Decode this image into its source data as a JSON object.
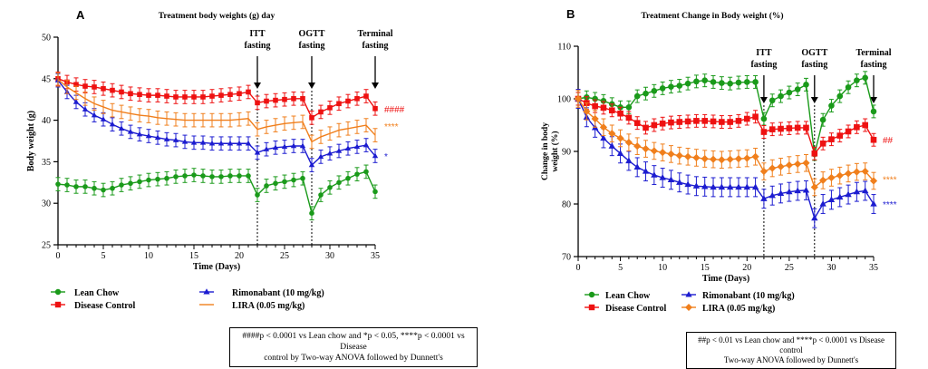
{
  "panels": {
    "A": {
      "letter": "A",
      "title": "Treatment body weights (g) day",
      "annotations": [
        {
          "label": [
            "ITT",
            "fasting"
          ],
          "day": 22
        },
        {
          "label": [
            "OGTT",
            "fasting"
          ],
          "day": 28
        },
        {
          "label": [
            "Terminal",
            "fasting"
          ],
          "day": 35
        }
      ],
      "significance": [
        "####",
        "*",
        "****"
      ],
      "footnote": [
        "####p < 0.0001 vs Lean chow and *p < 0.05, ****p < 0.0001 vs Disease",
        "control by Two-way ANOVA followed by Dunnett's"
      ]
    },
    "B": {
      "letter": "B",
      "title": "Treatment Change in Body weight (%)",
      "annotations": [
        {
          "label": [
            "ITT",
            "fasting"
          ],
          "day": 22
        },
        {
          "label": [
            "OGTT",
            "fasting"
          ],
          "day": 28
        },
        {
          "label": [
            "Terminal",
            "fasting"
          ],
          "day": 35
        }
      ],
      "significance": [
        "##",
        "****",
        "****"
      ],
      "footnote": [
        "##p < 0.01 vs Lean chow and ****p < 0.0001 vs Disease control",
        "Two-way ANOVA followed by Dunnett's"
      ]
    }
  },
  "chart_data": [
    {
      "type": "line",
      "title": "Treatment body weights (g) day",
      "xlabel": "Time (Days)",
      "ylabel": "Body weight (g)",
      "xlim": [
        0,
        35
      ],
      "ylim": [
        25,
        50
      ],
      "xticks": [
        0,
        5,
        10,
        15,
        20,
        25,
        30,
        35
      ],
      "yticks": [
        25,
        30,
        35,
        40,
        45,
        50
      ],
      "legend_position": "bottom",
      "x": [
        0,
        1,
        2,
        3,
        4,
        5,
        6,
        7,
        8,
        9,
        10,
        11,
        12,
        13,
        14,
        15,
        16,
        17,
        18,
        19,
        20,
        21,
        22,
        23,
        24,
        25,
        26,
        27,
        28,
        29,
        30,
        31,
        32,
        33,
        34,
        35
      ],
      "series": [
        {
          "name": "Lean Chow",
          "color": "#1a9a1a",
          "marker": "circle",
          "values": [
            32.3,
            32.2,
            32.0,
            32.0,
            31.8,
            31.6,
            31.8,
            32.2,
            32.4,
            32.6,
            32.8,
            32.9,
            33.0,
            33.2,
            33.3,
            33.4,
            33.3,
            33.2,
            33.2,
            33.3,
            33.3,
            33.3,
            31.0,
            32.1,
            32.4,
            32.6,
            32.8,
            33.0,
            28.8,
            31.0,
            31.9,
            32.5,
            33.0,
            33.5,
            33.8,
            31.4
          ],
          "error": 0.8
        },
        {
          "name": "Disease Control",
          "color": "#ee1111",
          "marker": "square",
          "values": [
            45.0,
            44.6,
            44.3,
            44.1,
            44.0,
            43.8,
            43.6,
            43.4,
            43.2,
            43.1,
            43.0,
            43.0,
            42.9,
            42.8,
            42.8,
            42.8,
            42.8,
            42.9,
            43.0,
            43.1,
            43.2,
            43.4,
            42.1,
            42.3,
            42.4,
            42.5,
            42.6,
            42.6,
            40.3,
            41.0,
            41.5,
            42.0,
            42.3,
            42.6,
            42.9,
            41.4
          ],
          "error": 0.8
        },
        {
          "name": "Rimonabant (10 mg/kg)",
          "color": "#1c1cd0",
          "marker": "triangle",
          "values": [
            44.8,
            43.4,
            42.2,
            41.3,
            40.6,
            40.1,
            39.5,
            39.0,
            38.6,
            38.3,
            38.1,
            37.9,
            37.7,
            37.6,
            37.4,
            37.3,
            37.3,
            37.2,
            37.2,
            37.2,
            37.2,
            37.2,
            36.1,
            36.5,
            36.7,
            36.8,
            36.9,
            36.9,
            34.6,
            35.6,
            36.0,
            36.3,
            36.6,
            36.8,
            37.0,
            35.7
          ],
          "error": 0.8
        },
        {
          "name": "LIRA (0.05 mg/kg)",
          "color": "#f07f1c",
          "marker": "none",
          "values": [
            44.9,
            44.0,
            43.3,
            42.6,
            42.0,
            41.6,
            41.2,
            41.0,
            40.8,
            40.6,
            40.5,
            40.3,
            40.2,
            40.1,
            40.0,
            40.0,
            40.0,
            40.0,
            40.0,
            40.0,
            40.1,
            40.2,
            38.9,
            39.2,
            39.4,
            39.6,
            39.7,
            39.8,
            37.4,
            38.0,
            38.4,
            38.8,
            39.0,
            39.2,
            39.4,
            38.2
          ],
          "error": 0.8
        }
      ]
    },
    {
      "type": "line",
      "title": "Treatment Change in Body weight (%)",
      "xlabel": "Time (Days)",
      "ylabel": "Change in body weight (%)",
      "xlim": [
        0,
        35
      ],
      "ylim": [
        70,
        110
      ],
      "xticks": [
        0,
        5,
        10,
        15,
        20,
        25,
        30,
        35
      ],
      "yticks": [
        70,
        80,
        90,
        100,
        110
      ],
      "legend_position": "bottom",
      "x": [
        0,
        1,
        2,
        3,
        4,
        5,
        6,
        7,
        8,
        9,
        10,
        11,
        12,
        13,
        14,
        15,
        16,
        17,
        18,
        19,
        20,
        21,
        22,
        23,
        24,
        25,
        26,
        27,
        28,
        29,
        30,
        31,
        32,
        33,
        34,
        35
      ],
      "series": [
        {
          "name": "Lean Chow",
          "color": "#1a9a1a",
          "marker": "circle",
          "values": [
            100,
            100.3,
            100,
            99.6,
            99,
            98.4,
            98.4,
            100.5,
            101,
            101.5,
            102,
            102.3,
            102.5,
            102.9,
            103.3,
            103.5,
            103.2,
            103,
            102.9,
            103.1,
            103.2,
            103.2,
            96.2,
            99.7,
            100.5,
            101.2,
            101.8,
            102.7,
            89.5,
            96,
            98.7,
            100.5,
            102.2,
            103.5,
            104,
            97.6
          ],
          "error": 1.2
        },
        {
          "name": "Disease Control",
          "color": "#ee1111",
          "marker": "square",
          "values": [
            100,
            99.2,
            98.6,
            98.3,
            97.8,
            97.2,
            96.4,
            95.4,
            94.5,
            95,
            95.3,
            95.5,
            95.6,
            95.7,
            95.8,
            95.8,
            95.7,
            95.6,
            95.6,
            95.8,
            96.2,
            96.6,
            93.7,
            94.2,
            94.3,
            94.4,
            94.5,
            94.5,
            89.6,
            91.5,
            92.3,
            93,
            93.8,
            94.6,
            95,
            92.2
          ],
          "error": 1.2
        },
        {
          "name": "Rimonabant (10 mg/kg)",
          "color": "#1c1cd0",
          "marker": "triangle",
          "values": [
            100,
            96.5,
            94.5,
            92.5,
            91,
            89.6,
            88.2,
            87,
            86.2,
            85.5,
            85,
            84.6,
            84.1,
            83.7,
            83.4,
            83.3,
            83.2,
            83.2,
            83.2,
            83.2,
            83.2,
            83.2,
            81,
            81.6,
            82,
            82.3,
            82.5,
            82.6,
            77.3,
            80,
            80.8,
            81.3,
            81.8,
            82.3,
            82.5,
            80
          ],
          "error": 1.8
        },
        {
          "name": "LIRA (0.05 mg/kg)",
          "color": "#f07f1c",
          "marker": "diamond",
          "values": [
            100,
            97.6,
            96.2,
            94.6,
            93.4,
            92.5,
            91.7,
            91,
            90.5,
            90.1,
            89.8,
            89.5,
            89.2,
            89,
            88.8,
            88.6,
            88.5,
            88.4,
            88.5,
            88.6,
            88.7,
            89,
            86.2,
            86.8,
            87.1,
            87.4,
            87.6,
            87.8,
            83.2,
            84.5,
            85,
            85.4,
            85.8,
            86.1,
            86.2,
            84.4
          ],
          "error": 1.6
        }
      ]
    }
  ]
}
